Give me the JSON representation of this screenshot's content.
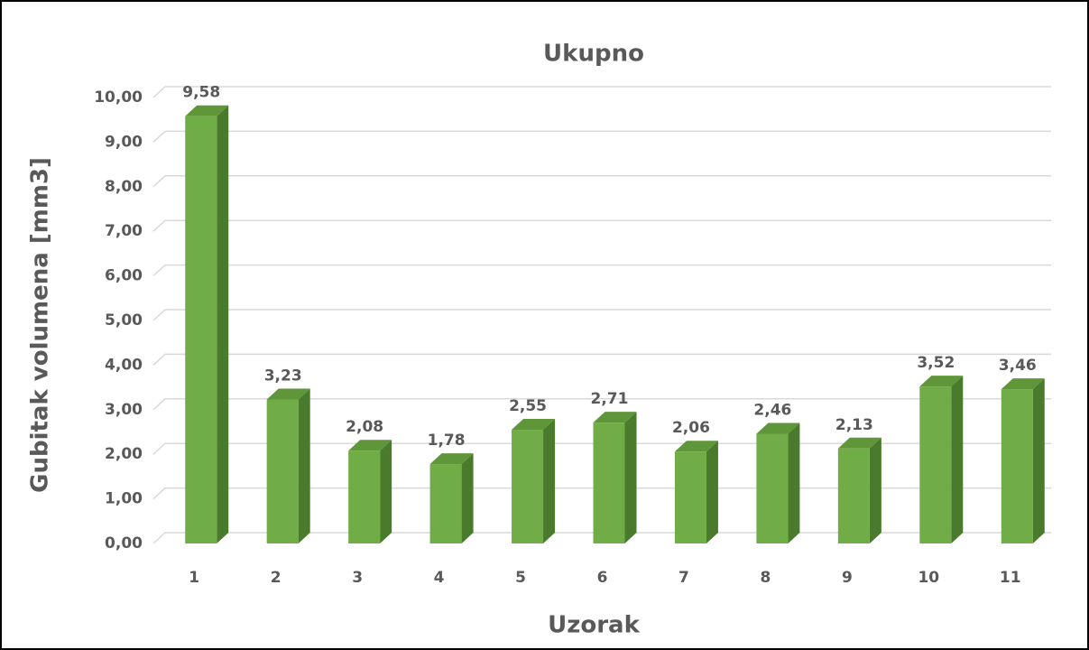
{
  "chart_data": {
    "type": "bar3d",
    "title": "Ukupno",
    "x_label": "Uzorak",
    "y_label": "Gubitak volumena [mm3]",
    "categories": [
      "1",
      "2",
      "3",
      "4",
      "5",
      "6",
      "7",
      "8",
      "9",
      "10",
      "11"
    ],
    "values": [
      9.58,
      3.23,
      2.08,
      1.78,
      2.55,
      2.71,
      2.06,
      2.46,
      2.13,
      3.52,
      3.46
    ],
    "value_labels": [
      "9,58",
      "3,23",
      "2,08",
      "1,78",
      "2,55",
      "2,71",
      "2,06",
      "2,46",
      "2,13",
      "3,52",
      "3,46"
    ],
    "color": "#70ad47",
    "ylim": [
      0,
      10
    ],
    "yticks": [
      {
        "value": 0,
        "label": "0,00"
      },
      {
        "value": 1,
        "label": "1,00"
      },
      {
        "value": 2,
        "label": "2,00"
      },
      {
        "value": 3,
        "label": "3,00"
      },
      {
        "value": 4,
        "label": "4,00"
      },
      {
        "value": 5,
        "label": "5,00"
      },
      {
        "value": 6,
        "label": "6,00"
      },
      {
        "value": 7,
        "label": "7,00"
      },
      {
        "value": 8,
        "label": "8,00"
      },
      {
        "value": 9,
        "label": "9,00"
      },
      {
        "value": 10,
        "label": "10,00"
      }
    ],
    "grid": true
  }
}
